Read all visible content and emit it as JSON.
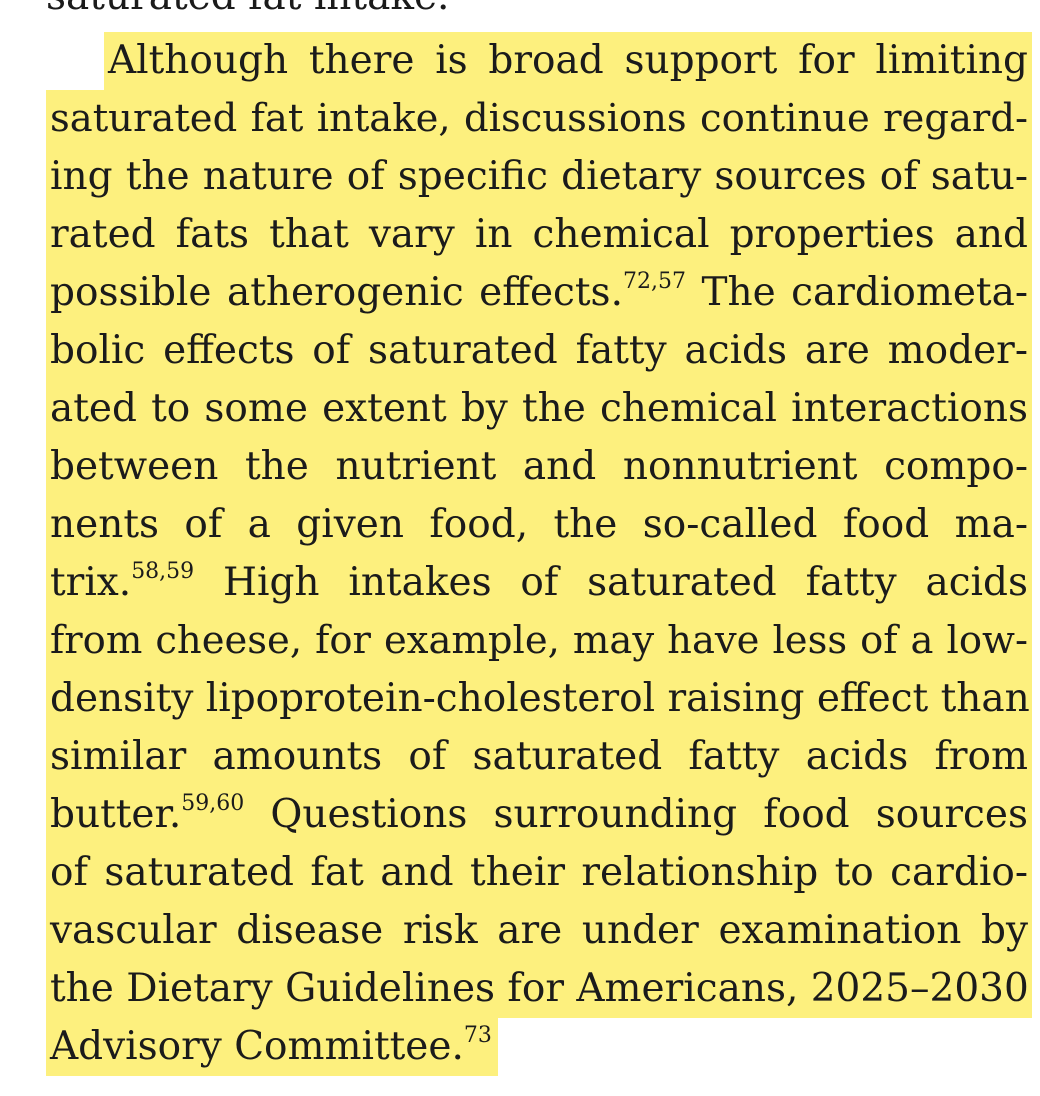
{
  "document": {
    "previous_paragraph_tail": "saturated fat intake.",
    "lines": [
      {
        "text": "Although there is broad support for limiting"
      },
      {
        "text": "saturated fat intake, discussions continue regard-"
      },
      {
        "text": "ing the nature of specific dietary sources of satu-"
      },
      {
        "text": "rated fats that vary in chemical properties and"
      },
      {
        "text": "possible atherogenic effects.",
        "ref": "72,",
        "ref2": "57",
        "after": " The cardiometa-"
      },
      {
        "text": "bolic effects of saturated fatty acids are moder-"
      },
      {
        "text": "ated to some extent by the chemical interactions"
      },
      {
        "text": "between the nutrient and nonnutrient compo-"
      },
      {
        "text": "nents of a given food, the so-called food ma-"
      },
      {
        "text": "trix.",
        "ref": "58,59",
        "after": " High intakes of saturated fatty acids"
      },
      {
        "text": "from cheese, for example, may have less of a low-"
      },
      {
        "text": "density lipoprotein-cholesterol raising effect than"
      },
      {
        "text": "similar amounts of saturated fatty acids from"
      },
      {
        "text": "butter.",
        "ref": "59,60",
        "after": " Questions surrounding food sources"
      },
      {
        "text": "of saturated fat and their relationship to cardio-"
      },
      {
        "text": "vascular disease risk are under examination by"
      },
      {
        "text": "the Dietary Guidelines for Americans, 2025–2030"
      },
      {
        "text": "Advisory Committee.",
        "ref": "73"
      }
    ],
    "highlight_color": "#fdf07e",
    "text_color": "#1b1b1b"
  }
}
